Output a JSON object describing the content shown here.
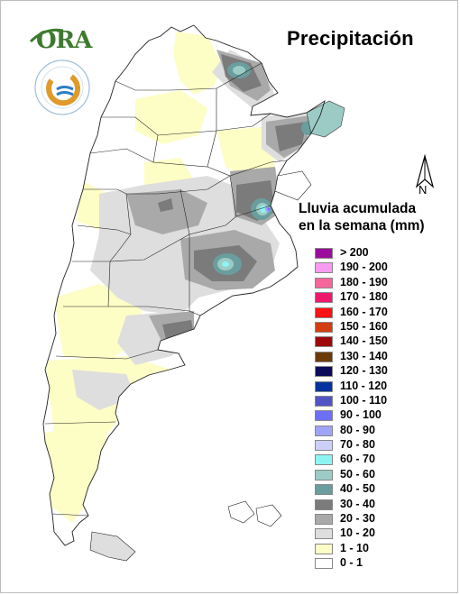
{
  "title": "Precipitación",
  "logo": {
    "ora": "ORA"
  },
  "compass_label": "N",
  "legend": {
    "title_line1": "Lluvia acumulada",
    "title_line2": "en la semana (mm)",
    "items": [
      {
        "label": "> 200",
        "color": "#9a0d9a"
      },
      {
        "label": "190 - 200",
        "color": "#f59cf0"
      },
      {
        "label": "180 - 190",
        "color": "#f7669a"
      },
      {
        "label": "170 - 180",
        "color": "#f0186a"
      },
      {
        "label": "160 - 170",
        "color": "#fb1212"
      },
      {
        "label": "150 - 160",
        "color": "#d43d12"
      },
      {
        "label": "140 - 150",
        "color": "#9e0a0a"
      },
      {
        "label": "130 - 140",
        "color": "#6c3a08"
      },
      {
        "label": "120 - 130",
        "color": "#0b0b5a"
      },
      {
        "label": "110 - 120",
        "color": "#05329e"
      },
      {
        "label": "100 - 110",
        "color": "#5154c2"
      },
      {
        "label": "90 - 100",
        "color": "#6d6ff6"
      },
      {
        "label": "80 - 90",
        "color": "#a0a4f7"
      },
      {
        "label": "70 - 80",
        "color": "#ccd0f8"
      },
      {
        "label": "60 - 70",
        "color": "#8df4f2"
      },
      {
        "label": "50 - 60",
        "color": "#9ccbc6"
      },
      {
        "label": "40 - 50",
        "color": "#6a9e9e"
      },
      {
        "label": "30 - 40",
        "color": "#7b7b7b"
      },
      {
        "label": "20 - 30",
        "color": "#a9a9a9"
      },
      {
        "label": "10 - 20",
        "color": "#dedede"
      },
      {
        "label": "1 - 10",
        "color": "#fdfdc6"
      },
      {
        "label": "0 - 1",
        "color": "#ffffff"
      }
    ]
  }
}
